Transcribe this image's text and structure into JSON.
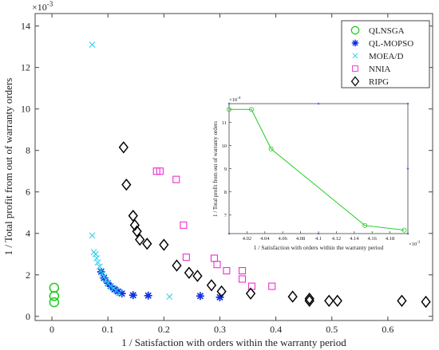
{
  "chart_data": [
    {
      "type": "scatter",
      "xlabel": "1 / Satisfaction with orders within the warranty period",
      "ylabel": "1 / Total profit from out of warranty orders",
      "y_multiplier": "×10",
      "y_multiplier_exp": "-3",
      "xlim": [
        -0.03,
        0.68
      ],
      "ylim": [
        -0.2,
        14.6
      ],
      "x_ticks": [
        "0",
        "0.1",
        "0.2",
        "0.3",
        "0.4",
        "0.5",
        "0.6"
      ],
      "x_tick_values": [
        0,
        0.1,
        0.2,
        0.3,
        0.4,
        0.5,
        0.6
      ],
      "y_ticks": [
        "0",
        "2",
        "4",
        "6",
        "8",
        "10",
        "12",
        "14"
      ],
      "y_tick_values": [
        0,
        2,
        4,
        6,
        8,
        10,
        12,
        14
      ],
      "legend_position": "top-right",
      "grid": false,
      "series": [
        {
          "name": "QLNSGA",
          "marker": "circle-open",
          "color": "#22cc22",
          "x": [
            0.004,
            0.004,
            0.004
          ],
          "y": [
            1.38,
            0.98,
            0.68
          ]
        },
        {
          "name": "QL-MOPSO",
          "marker": "star",
          "color": "#1030e0",
          "x": [
            0.088,
            0.093,
            0.1,
            0.105,
            0.112,
            0.118,
            0.125,
            0.145,
            0.172,
            0.265,
            0.3
          ],
          "y": [
            2.15,
            1.85,
            1.6,
            1.45,
            1.3,
            1.2,
            1.1,
            1.02,
            1.0,
            0.98,
            0.92
          ]
        },
        {
          "name": "MOEA/D",
          "marker": "x",
          "color": "#22ccee",
          "x": [
            0.072,
            0.072,
            0.075,
            0.078,
            0.08,
            0.082,
            0.085,
            0.088,
            0.09,
            0.093,
            0.097,
            0.1,
            0.105,
            0.11,
            0.115,
            0.12,
            0.21
          ],
          "y": [
            13.1,
            3.9,
            3.1,
            3.0,
            2.8,
            2.6,
            2.4,
            2.2,
            2.05,
            1.9,
            1.75,
            1.6,
            1.45,
            1.35,
            1.25,
            1.12,
            0.95
          ]
        },
        {
          "name": "NNIA",
          "marker": "square-open",
          "color": "#ee33cc",
          "x": [
            0.187,
            0.193,
            0.222,
            0.235,
            0.24,
            0.29,
            0.295,
            0.312,
            0.34,
            0.34,
            0.357,
            0.393
          ],
          "y": [
            7.0,
            7.0,
            6.6,
            4.4,
            2.85,
            2.8,
            2.5,
            2.2,
            2.2,
            1.8,
            1.45,
            1.45
          ]
        },
        {
          "name": "RIPG",
          "marker": "diamond-open",
          "color": "#000000",
          "x": [
            0.128,
            0.133,
            0.145,
            0.148,
            0.152,
            0.157,
            0.17,
            0.2,
            0.223,
            0.245,
            0.26,
            0.285,
            0.303,
            0.355,
            0.43,
            0.46,
            0.46,
            0.495,
            0.51,
            0.625,
            0.668
          ],
          "y": [
            8.15,
            6.35,
            4.85,
            4.4,
            4.1,
            3.7,
            3.5,
            3.45,
            2.45,
            2.1,
            1.95,
            1.5,
            1.2,
            1.1,
            0.95,
            0.85,
            0.75,
            0.75,
            0.75,
            0.75,
            0.7
          ]
        }
      ]
    },
    {
      "type": "line",
      "xlabel": "1 / Satisfaction with orders within the warranty period",
      "ylabel": "1 / Total profit from out of warranty orders",
      "x_multiplier": "×10",
      "x_multiplier_exp": "-3",
      "y_multiplier": "×10",
      "y_multiplier_exp": "-4",
      "xlim": [
        4.0,
        4.2
      ],
      "ylim": [
        6.2,
        11.8
      ],
      "x_ticks": [
        "4.02",
        "4.04",
        "4.06",
        "4.08",
        "4.1",
        "4.12",
        "4.14",
        "4.16",
        "4.18"
      ],
      "x_tick_values": [
        4.02,
        4.04,
        4.06,
        4.08,
        4.1,
        4.12,
        4.14,
        4.16,
        4.18
      ],
      "y_ticks": [
        "7",
        "8",
        "9",
        "10",
        "11"
      ],
      "y_tick_values": [
        7,
        8,
        9,
        10,
        11
      ],
      "grid": false,
      "series": [
        {
          "marker": "circle-open",
          "color": "#22cc22",
          "x": [
            4.0,
            4.025,
            4.047,
            4.152,
            4.196
          ],
          "y": [
            11.55,
            11.55,
            9.85,
            6.55,
            6.35
          ]
        }
      ]
    }
  ]
}
